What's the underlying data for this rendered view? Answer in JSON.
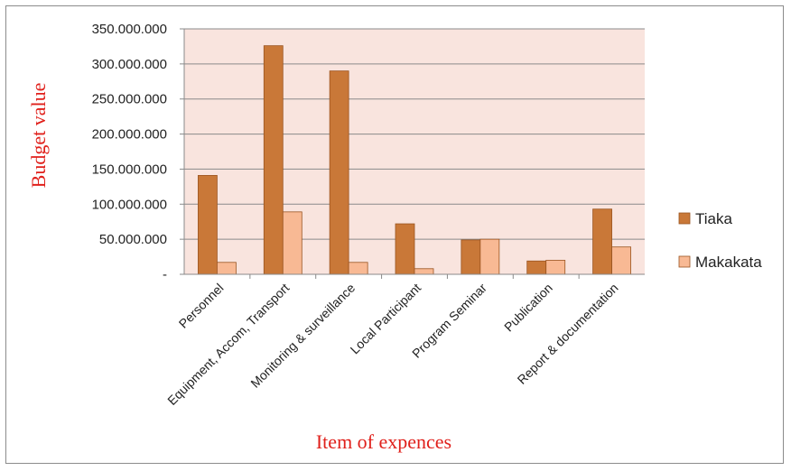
{
  "chart_data": {
    "type": "bar",
    "categories": [
      "Personnel",
      "Equipment, Accom, Transport",
      "Monitoring & surveillance",
      "Local Participant",
      "Program Seminar",
      "Publication",
      "Report & documentation"
    ],
    "series": [
      {
        "name": "Tiaka",
        "values": [
          141000000,
          326000000,
          290000000,
          72000000,
          49000000,
          19000000,
          93000000
        ],
        "color": "#c97838"
      },
      {
        "name": "Makakata",
        "values": [
          17000000,
          89000000,
          17000000,
          8000000,
          50000000,
          20000000,
          39000000
        ],
        "color": "#f8b994"
      }
    ],
    "title": "",
    "xlabel": "Item of expences",
    "ylabel": "Budget value",
    "ylim": [
      0,
      350000000
    ],
    "yticks": [
      {
        "value": 0,
        "label": "-"
      },
      {
        "value": 50000000,
        "label": "50.000.000"
      },
      {
        "value": 100000000,
        "label": "100.000.000"
      },
      {
        "value": 150000000,
        "label": "150.000.000"
      },
      {
        "value": 200000000,
        "label": "200.000.000"
      },
      {
        "value": 250000000,
        "label": "250.000.000"
      },
      {
        "value": 300000000,
        "label": "300.000.000"
      },
      {
        "value": 350000000,
        "label": "350.000.000"
      }
    ],
    "grid": true,
    "plot_background": "#f9e4de",
    "legend_position": "right"
  }
}
